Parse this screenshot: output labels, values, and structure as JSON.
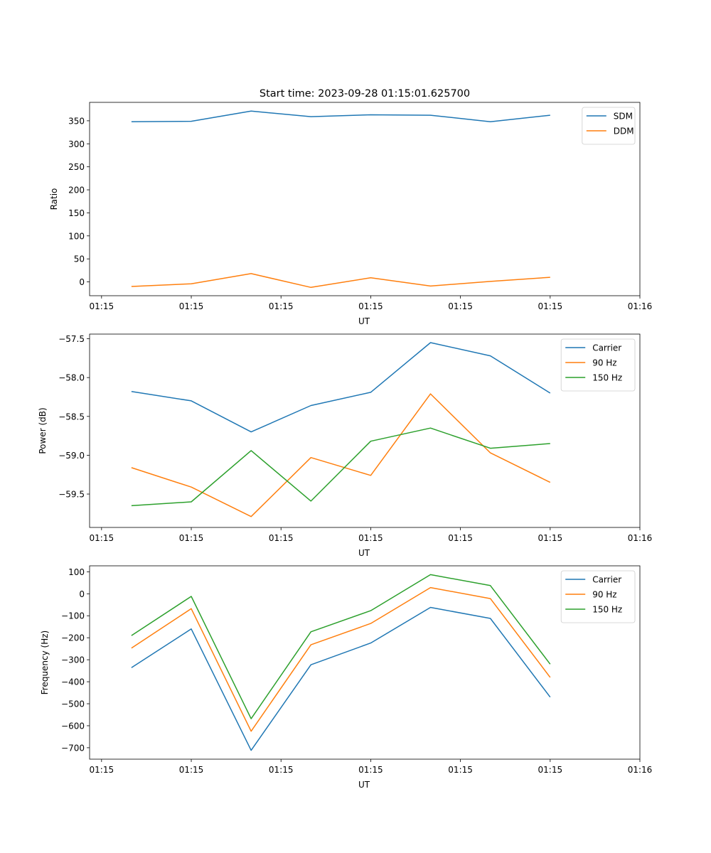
{
  "figure_title": "Start time: 2023-09-28 01:15:01.625700",
  "colors": {
    "blue": "#1f77b4",
    "orange": "#ff7f0e",
    "green": "#2ca02c"
  },
  "chart_data": [
    {
      "type": "line",
      "xlabel": "UT",
      "ylabel": "Ratio",
      "xlim": [
        -0.2,
        9.0
      ],
      "ylim": [
        -30,
        390
      ],
      "x": [
        0.5,
        1.5,
        2.5,
        3.5,
        4.5,
        5.5,
        6.5,
        7.5
      ],
      "xticks": [
        0,
        1.5,
        3,
        4.5,
        6,
        7.5,
        9
      ],
      "xtick_labels": [
        "01:15",
        "01:15",
        "01:15",
        "01:15",
        "01:15",
        "01:15",
        "01:16"
      ],
      "yticks": [
        0,
        50,
        100,
        150,
        200,
        250,
        300,
        350
      ],
      "ytick_labels": [
        "0",
        "50",
        "100",
        "150",
        "200",
        "250",
        "300",
        "350"
      ],
      "legend_position": "top-right",
      "series": [
        {
          "name": "SDM",
          "color": "#1f77b4",
          "values": [
            348,
            349,
            371,
            359,
            363,
            362,
            348,
            362
          ]
        },
        {
          "name": "DDM",
          "color": "#ff7f0e",
          "values": [
            -10,
            -4,
            18,
            -12,
            9,
            -9,
            1,
            10
          ]
        }
      ]
    },
    {
      "type": "line",
      "xlabel": "UT",
      "ylabel": "Power (dB)",
      "xlim": [
        -0.2,
        9.0
      ],
      "ylim": [
        -59.93,
        -57.44
      ],
      "x": [
        0.5,
        1.5,
        2.5,
        3.5,
        4.5,
        5.5,
        6.5,
        7.5
      ],
      "xticks": [
        0,
        1.5,
        3,
        4.5,
        6,
        7.5,
        9
      ],
      "xtick_labels": [
        "01:15",
        "01:15",
        "01:15",
        "01:15",
        "01:15",
        "01:15",
        "01:16"
      ],
      "yticks": [
        -59.5,
        -59.0,
        -58.5,
        -58.0,
        -57.5
      ],
      "ytick_labels": [
        "−59.5",
        "−59.0",
        "−58.5",
        "−58.0",
        "−57.5"
      ],
      "legend_position": "top-right",
      "series": [
        {
          "name": "Carrier",
          "color": "#1f77b4",
          "values": [
            -58.18,
            -58.3,
            -58.7,
            -58.36,
            -58.19,
            -57.55,
            -57.72,
            -58.2
          ]
        },
        {
          "name": "90 Hz",
          "color": "#ff7f0e",
          "values": [
            -59.16,
            -59.41,
            -59.79,
            -59.03,
            -59.26,
            -58.21,
            -58.97,
            -59.35
          ]
        },
        {
          "name": "150 Hz",
          "color": "#2ca02c",
          "values": [
            -59.65,
            -59.6,
            -58.94,
            -59.59,
            -58.82,
            -58.65,
            -58.91,
            -58.85
          ]
        }
      ]
    },
    {
      "type": "line",
      "xlabel": "UT",
      "ylabel": "Frequency (Hz)",
      "xlim": [
        -0.2,
        9.0
      ],
      "ylim": [
        -752,
        127
      ],
      "x": [
        0.5,
        1.5,
        2.5,
        3.5,
        4.5,
        5.5,
        6.5,
        7.5
      ],
      "xticks": [
        0,
        1.5,
        3,
        4.5,
        6,
        7.5,
        9
      ],
      "xtick_labels": [
        "01:15",
        "01:15",
        "01:15",
        "01:15",
        "01:15",
        "01:15",
        "01:16"
      ],
      "yticks": [
        -700,
        -600,
        -500,
        -400,
        -300,
        -200,
        -100,
        0,
        100
      ],
      "ytick_labels": [
        "−700",
        "−600",
        "−500",
        "−400",
        "−300",
        "−200",
        "−100",
        "0",
        "100"
      ],
      "legend_position": "top-right",
      "series": [
        {
          "name": "Carrier",
          "color": "#1f77b4",
          "values": [
            -336,
            -160,
            -712,
            -323,
            -224,
            -62,
            -112,
            -470
          ]
        },
        {
          "name": "90 Hz",
          "color": "#ff7f0e",
          "values": [
            -247,
            -68,
            -625,
            -232,
            -135,
            28,
            -22,
            -380
          ]
        },
        {
          "name": "150 Hz",
          "color": "#2ca02c",
          "values": [
            -190,
            -12,
            -568,
            -173,
            -77,
            87,
            37,
            -320
          ]
        }
      ]
    }
  ]
}
